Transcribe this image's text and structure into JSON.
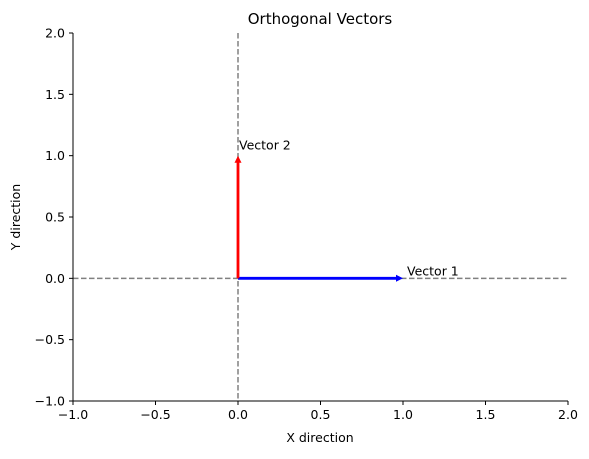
{
  "chart_data": {
    "type": "vector",
    "title": "Orthogonal Vectors",
    "xlabel": "X direction",
    "ylabel": "Y direction",
    "xlim": [
      -1.0,
      2.0
    ],
    "ylim": [
      -1.0,
      2.0
    ],
    "xticks": [
      -1.0,
      -0.5,
      0.0,
      0.5,
      1.0,
      1.5,
      2.0
    ],
    "yticks": [
      -1.0,
      -0.5,
      0.0,
      0.5,
      1.0,
      1.5,
      2.0
    ],
    "xtick_labels": [
      "−1.0",
      "−0.5",
      "0.0",
      "0.5",
      "1.0",
      "1.5",
      "2.0"
    ],
    "ytick_labels": [
      "−1.0",
      "−0.5",
      "0.0",
      "0.5",
      "1.0",
      "1.5",
      "2.0"
    ],
    "grid": false,
    "reference_lines": [
      {
        "orientation": "horizontal",
        "value": 0,
        "style": "dashed",
        "color": "#808080"
      },
      {
        "orientation": "vertical",
        "value": 0,
        "style": "dashed",
        "color": "#808080"
      }
    ],
    "vectors": [
      {
        "name": "Vector 1",
        "origin": [
          0,
          0
        ],
        "components": [
          1,
          0
        ],
        "color": "#0000ff"
      },
      {
        "name": "Vector 2",
        "origin": [
          0,
          0
        ],
        "components": [
          0,
          1
        ],
        "color": "#ff0000"
      }
    ]
  }
}
